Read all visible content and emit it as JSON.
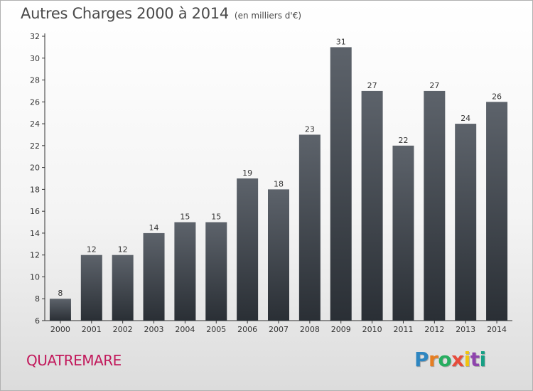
{
  "title": "Autres Charges 2000 à 2014",
  "subtitle": "(en milliers d'€)",
  "commune": "QUATREMARE",
  "brand": {
    "text": "Proxiti",
    "letter_colors": [
      "#2e86c1",
      "#e67e22",
      "#27ae60",
      "#e74c3c",
      "#f1c40f",
      "#8e44ad",
      "#16a085"
    ]
  },
  "colors": {
    "bar_top": "#5d636b",
    "bar_bottom": "#2a2f35",
    "title": "#4a4a4a",
    "commune": "#c2185b"
  },
  "chart_data": {
    "type": "bar",
    "title": "Autres Charges 2000 à 2014",
    "subtitle": "(en milliers d'€)",
    "categories": [
      "2000",
      "2001",
      "2002",
      "2003",
      "2004",
      "2005",
      "2006",
      "2007",
      "2008",
      "2009",
      "2010",
      "2011",
      "2012",
      "2013",
      "2014"
    ],
    "values": [
      8,
      12,
      12,
      14,
      15,
      15,
      19,
      18,
      23,
      31,
      27,
      22,
      27,
      24,
      26
    ],
    "ylim": [
      6,
      32
    ],
    "yticks": [
      6,
      8,
      10,
      12,
      14,
      16,
      18,
      20,
      22,
      24,
      26,
      28,
      30,
      32
    ],
    "xlabel": "",
    "ylabel": "",
    "grid": false,
    "legend": "none"
  }
}
